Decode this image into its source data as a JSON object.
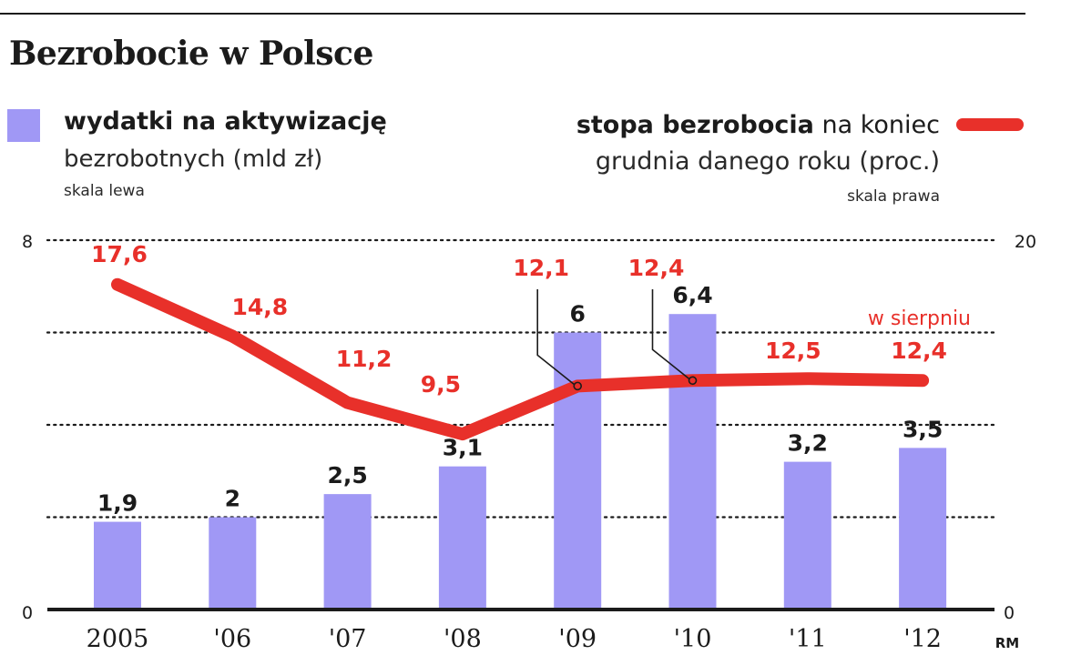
{
  "title": "Bezrobocie w Polsce",
  "legend": {
    "bars_bold": "wydatki na aktywizację",
    "bars_rest": "bezrobotnych (mld zł)",
    "bars_scale": "skala lewa",
    "line_bold": "stopa bezrobocia",
    "line_rest1": "na koniec",
    "line_rest2": "grudnia danego roku (proc.)",
    "line_scale": "skala prawa"
  },
  "colors": {
    "bar": "#a098f5",
    "line": "#e8302a",
    "text": "#1b1b1b"
  },
  "chart_data": {
    "type": "bar",
    "categories": [
      "2005",
      "'06",
      "'07",
      "'08",
      "'09",
      "'10",
      "'11",
      "'12"
    ],
    "series": [
      {
        "name": "wydatki na aktywizację bezrobotnych (mld zł)",
        "type": "bar",
        "axis": "left",
        "values": [
          1.9,
          2,
          2.5,
          3.1,
          6,
          6.4,
          3.2,
          3.5
        ],
        "labels": [
          "1,9",
          "2",
          "2,5",
          "3,1",
          "6",
          "6,4",
          "3,2",
          "3,5"
        ]
      },
      {
        "name": "stopa bezrobocia na koniec grudnia danego roku (proc.)",
        "type": "line",
        "axis": "right",
        "values": [
          17.6,
          14.8,
          11.2,
          9.5,
          12.1,
          12.4,
          12.5,
          12.4
        ],
        "labels": [
          "17,6",
          "14,8",
          "11,2",
          "9,5",
          "12,1",
          "12,4",
          "12,5",
          "12,4"
        ]
      }
    ],
    "y_left": {
      "min": 0,
      "max": 8,
      "tick_labels": [
        "0",
        "8"
      ]
    },
    "y_right": {
      "min": 0,
      "max": 20,
      "tick_labels": [
        "0",
        "20"
      ]
    },
    "grid": "dotted",
    "annotation": "w sierpniu",
    "source": "RM"
  }
}
